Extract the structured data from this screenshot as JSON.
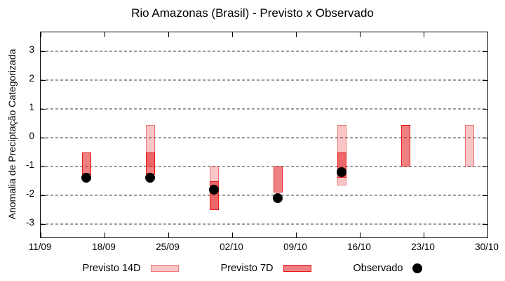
{
  "chart_data": {
    "type": "bar",
    "title": "Rio Amazonas (Brasil) - Previsto x Observado",
    "ylabel": "Anomalia de Preciptação Categorizada",
    "xlabel": "",
    "ylim": [
      -3.5,
      3.7
    ],
    "grid": "horizontal-dashed",
    "legend_position": "bottom-center",
    "y_ticks": [
      3,
      2,
      1,
      0,
      -1,
      -2,
      -3
    ],
    "x_tick_labels": [
      "11/09",
      "18/09",
      "25/09",
      "02/10",
      "09/10",
      "16/10",
      "23/10",
      "30/10"
    ],
    "x_tick_interval_days": 7,
    "series_names": [
      "Previsto 14D",
      "Previsto 7D",
      "Observado"
    ],
    "groups": [
      {
        "date": "16/09",
        "day_offset": 5,
        "previsto_14d": null,
        "previsto_7d": [
          -0.5,
          -1.3
        ],
        "observado": -1.4
      },
      {
        "date": "23/09",
        "day_offset": 12,
        "previsto_14d": [
          0.45,
          -1.0
        ],
        "previsto_7d": [
          -0.5,
          -1.3
        ],
        "observado": -1.4
      },
      {
        "date": "30/09",
        "day_offset": 19,
        "previsto_14d": [
          -1.0,
          -2.5
        ],
        "previsto_7d": [
          -1.5,
          -2.5
        ],
        "observado": -1.8
      },
      {
        "date": "07/10",
        "day_offset": 26,
        "previsto_14d": null,
        "previsto_7d": [
          -1.0,
          -1.9
        ],
        "observado": -2.1
      },
      {
        "date": "14/10",
        "day_offset": 33,
        "previsto_14d": [
          0.45,
          -1.65
        ],
        "previsto_7d": [
          -0.5,
          -1.4
        ],
        "observado": -1.2
      },
      {
        "date": "21/10",
        "day_offset": 40,
        "previsto_14d": null,
        "previsto_7d": [
          0.45,
          -1.0
        ],
        "observado": null
      },
      {
        "date": "28/10",
        "day_offset": 47,
        "previsto_14d": [
          0.45,
          -1.0
        ],
        "previsto_7d": null,
        "observado": null
      }
    ]
  },
  "legend": {
    "items": [
      {
        "label": "Previsto 14D",
        "swatch": "box-light"
      },
      {
        "label": "Previsto 7D",
        "swatch": "box-dark"
      },
      {
        "label": "Observado",
        "swatch": "dot"
      }
    ]
  },
  "colors": {
    "previsto_14d_fill": "rgba(228,26,28,0.25)",
    "previsto_14d_border": "rgba(228,26,28,0.45)",
    "previsto_7d_fill": "rgba(228,26,28,0.55)",
    "previsto_7d_border": "#e41a1c",
    "observado": "#000000",
    "grid": "#9c9c9c",
    "frame": "#000000",
    "background": "#ffffff",
    "text": "#000000"
  }
}
